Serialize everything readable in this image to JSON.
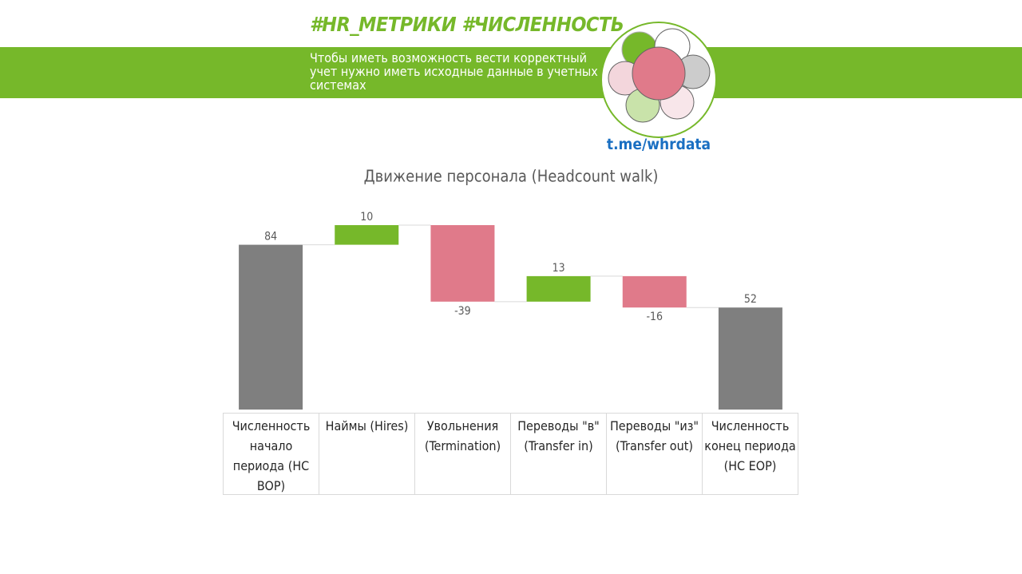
{
  "header": {
    "title": "#HR_МЕТРИКИ #ЧИСЛЕННОСТЬ",
    "subtitle": "Чтобы иметь возможность вести корректный учет нужно иметь исходные данные в учетных системах",
    "link": "t.me/whrdata"
  },
  "chart_data": {
    "type": "waterfall",
    "title": "Движение персонала (Headcount walk)",
    "categories": [
      "Численность начало периода (HC BOP)",
      "Наймы (Hires)",
      "Увольнения (Termination)",
      "Переводы \"в\" (Transfer in)",
      "Переводы \"из\" (Transfer out)",
      "Численность конец периода (HC EOP)"
    ],
    "values": [
      84,
      10,
      -39,
      13,
      -16,
      52
    ],
    "measure": [
      "absolute",
      "relative",
      "relative",
      "relative",
      "relative",
      "absolute"
    ],
    "total_color": "#7f7f7f",
    "increase_color": "#76b82a",
    "decrease_color": "#e07a8a"
  }
}
